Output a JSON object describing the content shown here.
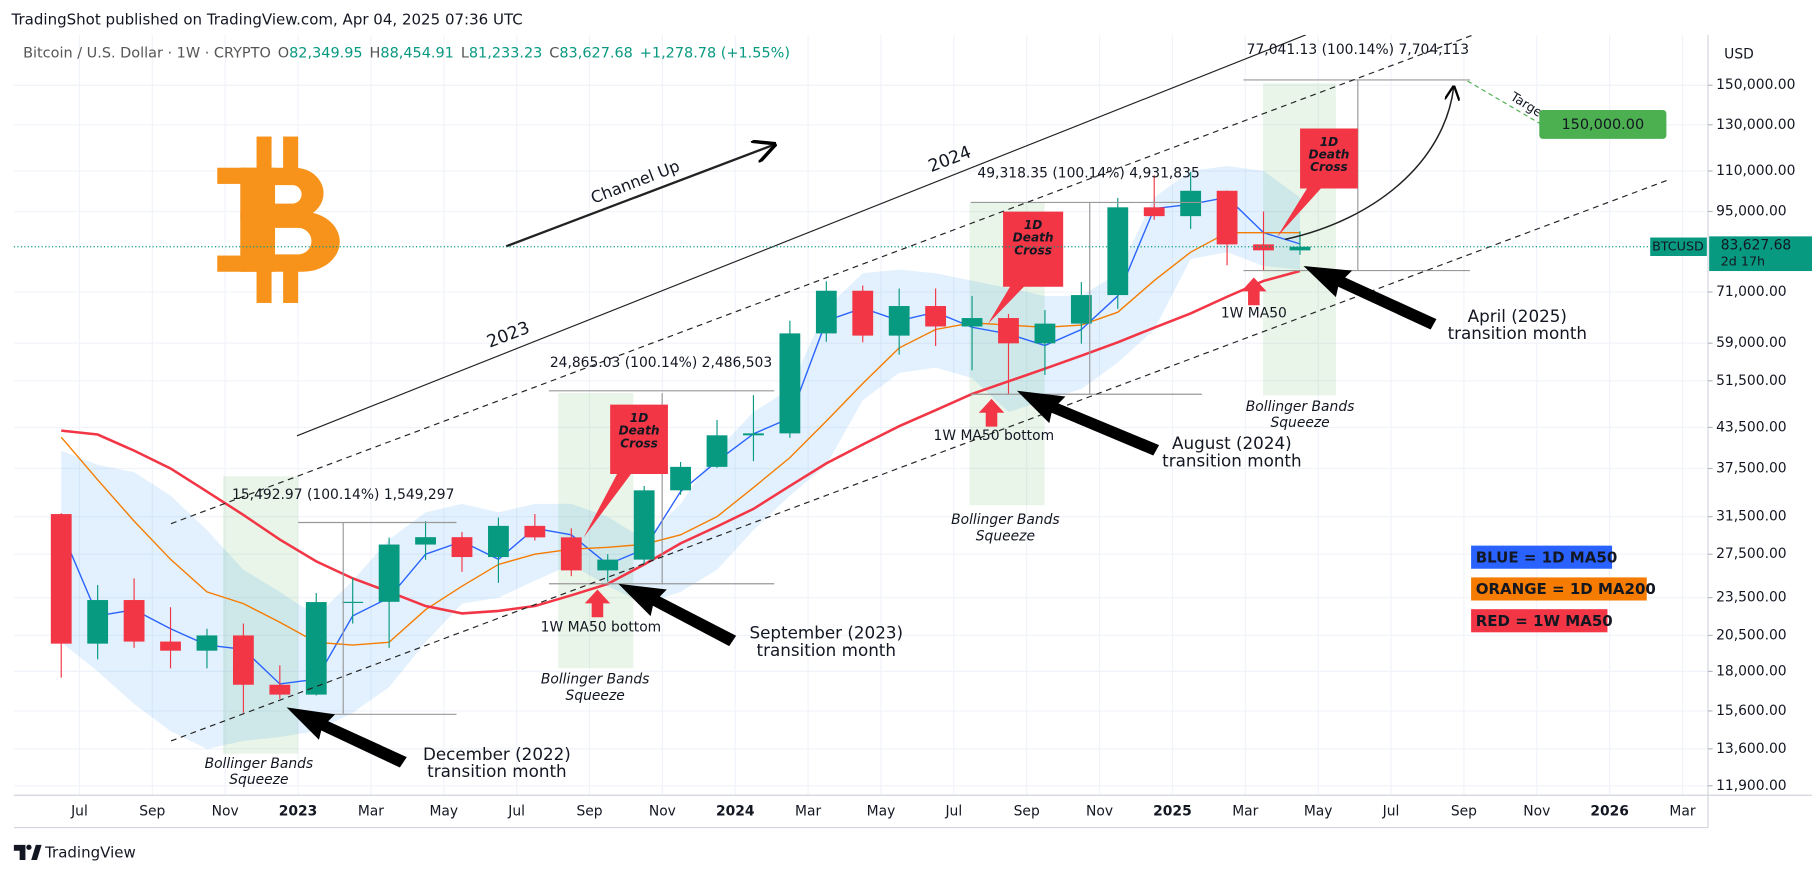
{
  "header": {
    "published": "TradingShot published on TradingView.com, Apr 04, 2025 07:36 UTC",
    "symbol": "Bitcoin / U.S. Dollar · 1W · CRYPTO",
    "ohlc": [
      "O",
      "82,349.95",
      "H",
      "88,454.91",
      "L",
      "81,233.23",
      "C",
      "83,627.68",
      "+1,278.78 (+1.55%)"
    ],
    "currency": "USD"
  },
  "footer": {
    "brand": "TradingView"
  },
  "chart_data": {
    "type": "candlestick",
    "x": [
      5.5,
      6.5,
      7.5,
      8.5,
      9.5,
      10.5,
      11.5,
      12.5,
      13.5,
      14.5,
      15.5,
      16.5,
      17.5,
      18.5,
      19.5,
      20.5,
      21.5,
      22.5,
      23.5,
      24.5,
      25.5,
      26.5,
      27.5,
      28.5,
      29.5,
      30.5,
      31.5,
      32.5,
      33.5,
      34.5,
      35.5,
      36.5,
      37.5,
      38.5,
      39.5
    ],
    "open": [
      31800,
      19900,
      23300,
      20050,
      19400,
      20500,
      17150,
      16550,
      23130,
      23150,
      28480,
      29250,
      27220,
      30470,
      29230,
      25940,
      26970,
      34650,
      37720,
      42280,
      42580,
      61130,
      71330,
      60640,
      67490,
      62680,
      64620,
      58970,
      63330,
      70220,
      96450,
      93430,
      102400,
      84350,
      82550
    ],
    "high": [
      31900,
      24600,
      25200,
      22700,
      21000,
      21400,
      18400,
      23900,
      25250,
      29200,
      31000,
      29800,
      31400,
      31800,
      30200,
      27500,
      35200,
      38400,
      44700,
      48900,
      64000,
      73800,
      72700,
      71900,
      71900,
      70000,
      65600,
      66500,
      73600,
      99800,
      108300,
      109600,
      102500,
      95000,
      88450
    ],
    "low": [
      17600,
      18800,
      19600,
      18200,
      18200,
      15500,
      16300,
      16500,
      21400,
      19600,
      26950,
      25800,
      24800,
      28900,
      25400,
      24900,
      26550,
      34100,
      37600,
      38500,
      41900,
      59300,
      59200,
      56600,
      58400,
      53500,
      49000,
      52600,
      58900,
      66800,
      92200,
      89200,
      78200,
      76600,
      81230
    ],
    "close": [
      19900,
      23300,
      20050,
      19400,
      20500,
      17150,
      16550,
      23130,
      23150,
      28480,
      29250,
      27220,
      30470,
      29230,
      25940,
      26970,
      34650,
      37720,
      42280,
      42580,
      61130,
      71330,
      60640,
      67490,
      62680,
      64620,
      58970,
      63330,
      70220,
      96450,
      93430,
      102400,
      84350,
      82550,
      83630
    ],
    "up_color": "#089981",
    "down_color": "#f23645",
    "series": [
      {
        "name": "BLUE = 1D MA50",
        "color": "#2962ff",
        "values": [
          30000,
          22000,
          22500,
          21000,
          19800,
          19500,
          17200,
          17500,
          22000,
          23500,
          27500,
          28800,
          27000,
          30200,
          29500,
          26500,
          28000,
          34500,
          38500,
          42500,
          45000,
          64000,
          67000,
          64000,
          66000,
          62500,
          61000,
          58500,
          62000,
          70000,
          96000,
          97500,
          100000,
          88000,
          84500
        ]
      },
      {
        "name": "ORANGE = 1D MA200",
        "color": "#f57c00",
        "values": [
          42000,
          36000,
          31000,
          27000,
          24000,
          23000,
          21500,
          20000,
          19800,
          20000,
          22500,
          24500,
          26500,
          27500,
          28000,
          28200,
          28500,
          29500,
          31500,
          35000,
          39000,
          44500,
          51000,
          58000,
          62000,
          63500,
          63000,
          62500,
          63000,
          66000,
          74000,
          82000,
          88000,
          88000,
          88000
        ]
      },
      {
        "name": "RED = 1W MA50",
        "color": "#f23645",
        "values": [
          43000,
          42400,
          40000,
          37500,
          34500,
          31700,
          29000,
          26800,
          25200,
          24000,
          22800,
          22200,
          22400,
          22800,
          23700,
          24700,
          26500,
          28600,
          30400,
          32400,
          35200,
          38200,
          40900,
          43700,
          46300,
          49100,
          51400,
          53800,
          56400,
          59200,
          62400,
          65700,
          69800,
          73900,
          76600
        ]
      }
    ],
    "bands": {
      "color": "rgba(33,150,243,0.13)",
      "upper": [
        40000,
        38000,
        37000,
        34000,
        30000,
        26000,
        24000,
        22000,
        25000,
        29000,
        32000,
        33000,
        32000,
        33000,
        33000,
        31500,
        29000,
        33000,
        40000,
        46000,
        50000,
        67000,
        76000,
        77000,
        76000,
        74000,
        72000,
        70000,
        70000,
        76000,
        100000,
        110000,
        112000,
        110000,
        100000
      ],
      "lower": [
        20000,
        18000,
        16000,
        14500,
        13600,
        14000,
        14200,
        14500,
        15500,
        17000,
        20000,
        23000,
        23500,
        25000,
        26500,
        24500,
        23000,
        24000,
        26000,
        30000,
        34000,
        38000,
        48000,
        53000,
        54000,
        52000,
        46000,
        48000,
        50000,
        55000,
        62000,
        80000,
        82000,
        78000,
        77000
      ]
    },
    "xlim": [
      4.2,
      50.7
    ],
    "xticks": [
      {
        "value": 6,
        "label": "Jul"
      },
      {
        "value": 8,
        "label": "Sep"
      },
      {
        "value": 10,
        "label": "Nov"
      },
      {
        "value": 12,
        "label": "2023"
      },
      {
        "value": 14,
        "label": "Mar"
      },
      {
        "value": 16,
        "label": "May"
      },
      {
        "value": 18,
        "label": "Jul"
      },
      {
        "value": 20,
        "label": "Sep"
      },
      {
        "value": 22,
        "label": "Nov"
      },
      {
        "value": 24,
        "label": "2024"
      },
      {
        "value": 26,
        "label": "Mar"
      },
      {
        "value": 28,
        "label": "May"
      },
      {
        "value": 30,
        "label": "Jul"
      },
      {
        "value": 32,
        "label": "Sep"
      },
      {
        "value": 34,
        "label": "Nov"
      },
      {
        "value": 36,
        "label": "2025"
      },
      {
        "value": 38,
        "label": "Mar"
      },
      {
        "value": 40,
        "label": "May"
      },
      {
        "value": 42,
        "label": "Jul"
      },
      {
        "value": 44,
        "label": "Sep"
      },
      {
        "value": 46,
        "label": "Nov"
      },
      {
        "value": 48,
        "label": "2026"
      },
      {
        "value": 50,
        "label": "Mar"
      }
    ],
    "ylim": [
      11500,
      180000
    ],
    "log_scale": true,
    "grid": true,
    "yticks": [
      {
        "value": 150000,
        "label": "150,000.00"
      },
      {
        "value": 130000,
        "label": "130,000.00"
      },
      {
        "value": 110000,
        "label": "110,000.00"
      },
      {
        "value": 95000,
        "label": "95,000.00"
      },
      {
        "value": 71000,
        "label": "71,000.00"
      },
      {
        "value": 59000,
        "label": "59,000.00"
      },
      {
        "value": 51500,
        "label": "51,500.00"
      },
      {
        "value": 43500,
        "label": "43,500.00"
      },
      {
        "value": 37500,
        "label": "37,500.00"
      },
      {
        "value": 31500,
        "label": "31,500.00"
      },
      {
        "value": 27500,
        "label": "27,500.00"
      },
      {
        "value": 23500,
        "label": "23,500.00"
      },
      {
        "value": 20500,
        "label": "20,500.00"
      },
      {
        "value": 18000,
        "label": "18,000.00"
      },
      {
        "value": 15600,
        "label": "15,600.00"
      },
      {
        "value": 13600,
        "label": "13,600.00"
      },
      {
        "value": 11900,
        "label": "11,900.00"
      }
    ],
    "last_symbol": "BTCUSD",
    "last_price": {
      "value": 83627.68,
      "label": "83,627.68"
    },
    "countdown": "2d 17h",
    "target_label": "Target",
    "target": {
      "value": 150000,
      "label": "150,000.00"
    },
    "notes": [
      {
        "lines": [
          "Channel Up"
        ]
      },
      {
        "lines": [
          "2024"
        ]
      },
      {
        "lines": [
          "2023"
        ]
      },
      {
        "lines": [
          "15,492.97 (100.14%) 1,549,297"
        ]
      },
      {
        "lines": [
          "24,865.03 (100.14%) 2,486,503"
        ]
      },
      {
        "lines": [
          "49,318.35 (100.14%) 4,931,835"
        ]
      },
      {
        "lines": [
          "77,041.13 (100.14%) 7,704,113"
        ]
      },
      {
        "lines": [
          "1W MA50 bottom"
        ]
      },
      {
        "lines": [
          "1W MA50 bottom"
        ]
      },
      {
        "lines": [
          "1W MA50"
        ]
      },
      {
        "lines": [
          "Bollinger Bands",
          "Squeeze"
        ]
      },
      {
        "lines": [
          "Bollinger Bands",
          "Squeeze"
        ]
      },
      {
        "lines": [
          "Bollinger Bands",
          "Squeeze"
        ]
      },
      {
        "lines": [
          "Bollinger Bands",
          "Squeeze"
        ]
      },
      {
        "lines": [
          "December (2022)",
          "transition month"
        ]
      },
      {
        "lines": [
          "September (2023)",
          "transition month"
        ]
      },
      {
        "lines": [
          "August (2024)",
          "transition month"
        ]
      },
      {
        "lines": [
          "April (2025)",
          "transition month"
        ]
      }
    ],
    "callouts": [
      {
        "lines": [
          "1D",
          "Death",
          "Cross"
        ]
      },
      {
        "lines": [
          "1D",
          "Death",
          "Cross"
        ]
      },
      {
        "lines": [
          "1D",
          "Death",
          "Cross"
        ]
      }
    ]
  }
}
